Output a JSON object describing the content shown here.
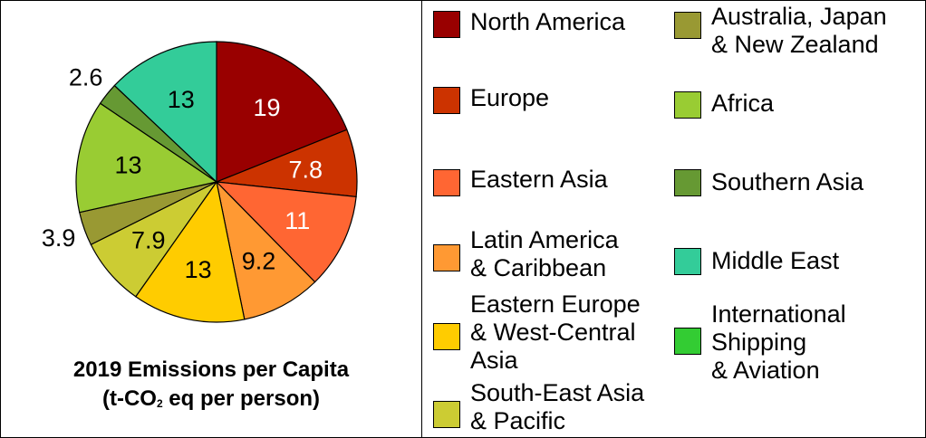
{
  "chart_data": {
    "type": "pie",
    "title": "2019 Emissions per Capita",
    "subtitle_prefix": "(t-CO",
    "subtitle_sub": "2",
    "subtitle_suffix": " eq per person)",
    "start_angle_deg": 0,
    "direction": "clockwise",
    "slices": [
      {
        "name": "North America",
        "value": 19,
        "label": "19",
        "color": "#990000",
        "label_color": "#ffffff",
        "label_outside": false
      },
      {
        "name": "Europe",
        "value": 7.8,
        "label": "7.8",
        "color": "#cc3300",
        "label_color": "#ffffff",
        "label_outside": false
      },
      {
        "name": "Eastern Asia",
        "value": 11,
        "label": "11",
        "color": "#ff6633",
        "label_color": "#ffffff",
        "label_outside": false
      },
      {
        "name": "Latin America & Caribbean",
        "value": 9.2,
        "label": "9.2",
        "color": "#ff9933",
        "label_color": "#000000",
        "label_outside": false
      },
      {
        "name": "Eastern Europe & West-Central Asia",
        "value": 13,
        "label": "13",
        "color": "#ffcc00",
        "label_color": "#000000",
        "label_outside": false
      },
      {
        "name": "South-East Asia & Pacific",
        "value": 7.9,
        "label": "7.9",
        "color": "#cccc33",
        "label_color": "#000000",
        "label_outside": false
      },
      {
        "name": "Australia, Japan & New Zealand",
        "value": 3.9,
        "label": "3.9",
        "color": "#999933",
        "label_color": "#000000",
        "label_outside": true
      },
      {
        "name": "Africa",
        "value": 13,
        "label": "13",
        "color": "#99cc33",
        "label_color": "#000000",
        "label_outside": false
      },
      {
        "name": "Southern Asia",
        "value": 2.6,
        "label": "2.6",
        "color": "#669933",
        "label_color": "#000000",
        "label_outside": true
      },
      {
        "name": "Middle East",
        "value": 13,
        "label": "13",
        "color": "#33cc99",
        "label_color": "#000000",
        "label_outside": false
      }
    ],
    "legend": {
      "placement": "right",
      "left_column": [
        {
          "label": "North America",
          "color": "#990000"
        },
        {
          "label": "Europe",
          "color": "#cc3300"
        },
        {
          "label": "Eastern Asia",
          "color": "#ff6633"
        },
        {
          "label": "Latin America\n& Caribbean",
          "color": "#ff9933"
        },
        {
          "label": "Eastern Europe\n& West-Central\nAsia",
          "color": "#ffcc00"
        },
        {
          "label": "South-East Asia\n& Pacific",
          "color": "#cccc33"
        }
      ],
      "right_column": [
        {
          "label": "Australia, Japan\n& New Zealand",
          "color": "#999933"
        },
        {
          "label": "Africa",
          "color": "#99cc33"
        },
        {
          "label": "Southern Asia",
          "color": "#669933"
        },
        {
          "label": "Middle East",
          "color": "#33cc99"
        },
        {
          "label": "International\nShipping\n& Aviation",
          "color": "#33cc33"
        }
      ]
    }
  }
}
